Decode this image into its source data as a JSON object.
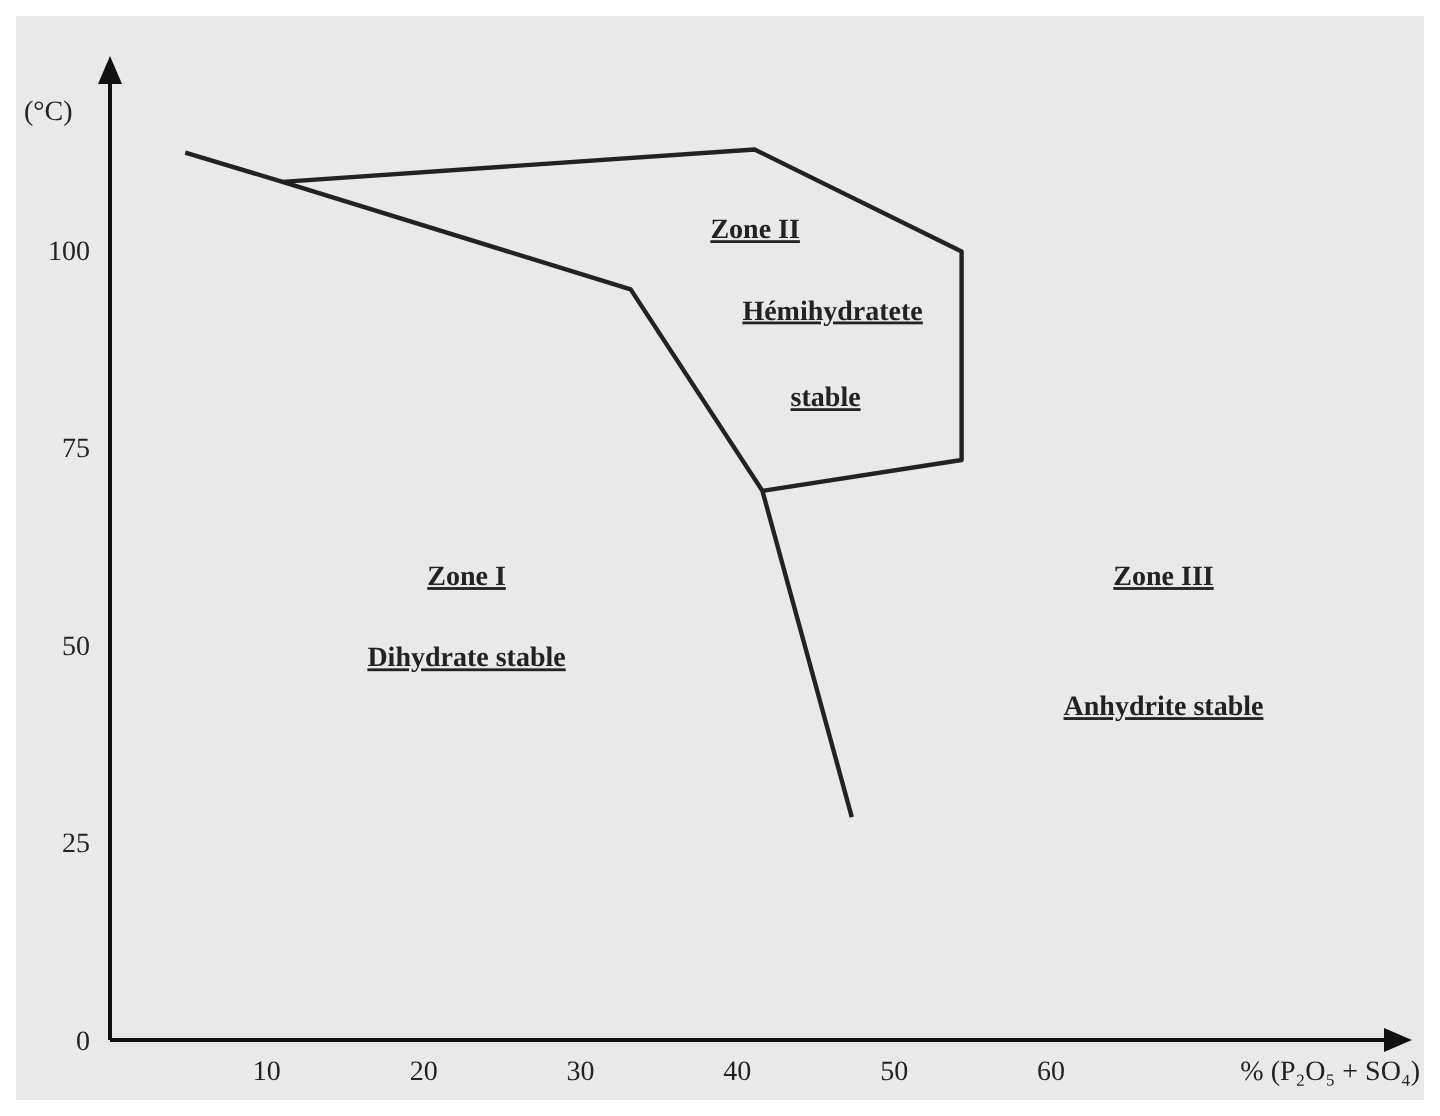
{
  "chart_data": {
    "type": "line",
    "xlabel": "% (P₂O₅ + SO₄)",
    "ylabel": "(°C)",
    "xlim": [
      0,
      82
    ],
    "ylim": [
      0,
      122
    ],
    "xticks": [
      10,
      20,
      30,
      40,
      50,
      60
    ],
    "yticks": [
      0,
      25,
      50,
      75,
      100
    ],
    "grid": false,
    "marker": "none",
    "line_style": "solid",
    "series": [
      {
        "color": "#222222",
        "x": [
          4.8,
          11,
          33.2,
          41.6,
          47.3
        ],
        "values": [
          112.3,
          108.6,
          95,
          69.5,
          28.2
        ]
      },
      {
        "color": "#222222",
        "x": [
          11,
          41.1,
          54.3,
          54.3,
          41.6
        ],
        "values": [
          108.6,
          112.7,
          99.8,
          73.4,
          69.5
        ]
      }
    ],
    "annotations": [
      "Zone I",
      "Dihydrate stable",
      "Zone II",
      "Hémihydratete",
      "stable",
      "Zone III",
      "Anhydrite stable"
    ]
  }
}
